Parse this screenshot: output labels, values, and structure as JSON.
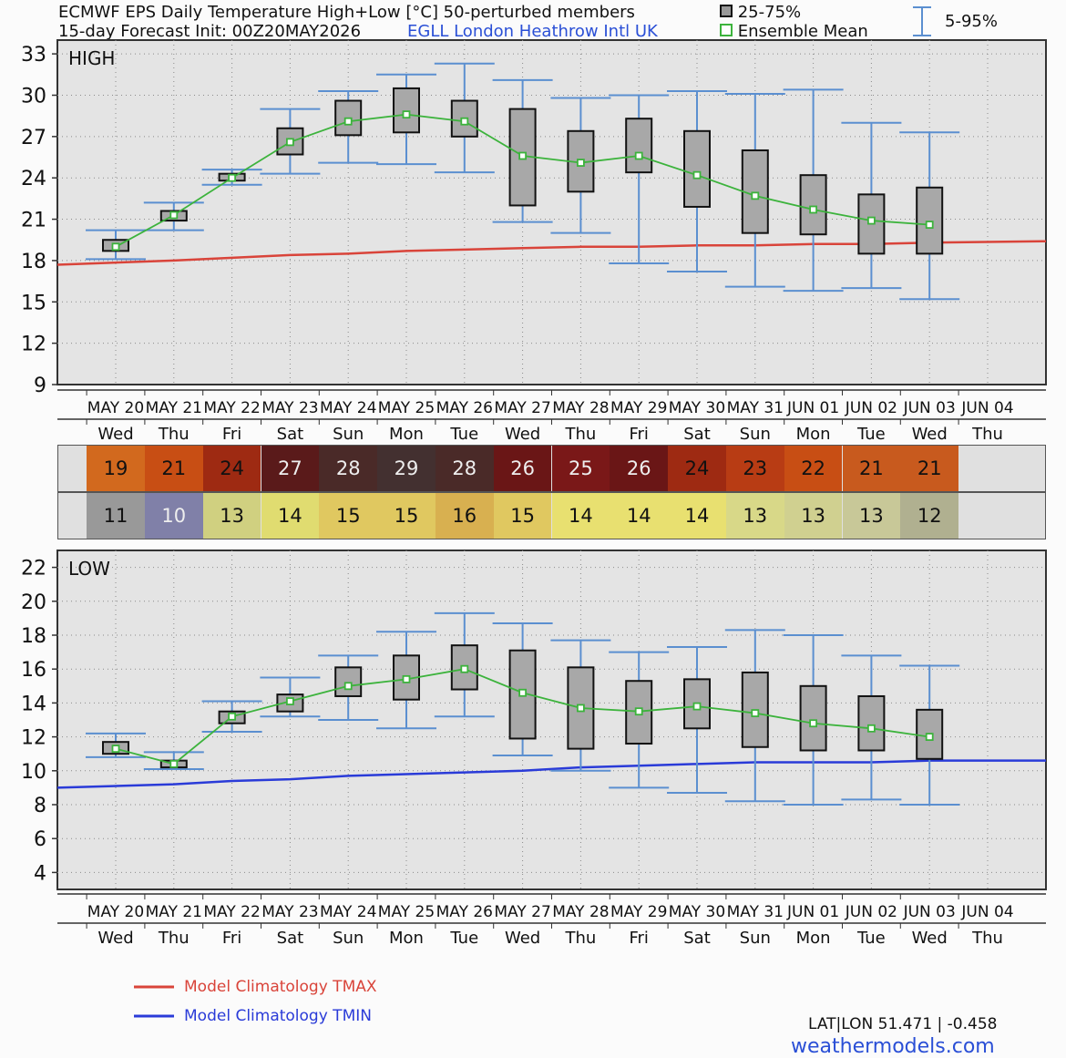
{
  "header": {
    "title": "ECMWF EPS Daily Temperature High+Low [°C]  50-perturbed members",
    "subtitle": "15-day Forecast Init: 00Z20MAY2026",
    "station": "EGLL  London Heathrow Intl UK",
    "legend_box": "25-75%",
    "legend_mean": "Ensemble Mean",
    "legend_whisker": "5-95%"
  },
  "dates": [
    "MAY 20",
    "MAY 21",
    "MAY 22",
    "MAY 23",
    "MAY 24",
    "MAY 25",
    "MAY 26",
    "MAY 27",
    "MAY 28",
    "MAY 29",
    "MAY 30",
    "MAY 31",
    "JUN 01",
    "JUN 02",
    "JUN 03",
    "JUN 04"
  ],
  "weekdays": [
    "Wed",
    "Thu",
    "Fri",
    "Sat",
    "Sun",
    "Mon",
    "Tue",
    "Wed",
    "Thu",
    "Fri",
    "Sat",
    "Sun",
    "Mon",
    "Tue",
    "Wed",
    "Thu"
  ],
  "high_table": [
    {
      "value": "19",
      "color": "#d2691e",
      "text": "#111"
    },
    {
      "value": "21",
      "color": "#c84e14",
      "text": "#111"
    },
    {
      "value": "24",
      "color": "#9e2a12",
      "text": "#111"
    },
    {
      "value": "27",
      "color": "#5a1a1a",
      "text": "#eee"
    },
    {
      "value": "28",
      "color": "#4a2a28",
      "text": "#eee"
    },
    {
      "value": "29",
      "color": "#433030",
      "text": "#eee"
    },
    {
      "value": "28",
      "color": "#4a2a28",
      "text": "#eee"
    },
    {
      "value": "26",
      "color": "#6a1616",
      "text": "#eee"
    },
    {
      "value": "25",
      "color": "#7a1818",
      "text": "#eee"
    },
    {
      "value": "26",
      "color": "#6a1616",
      "text": "#eee"
    },
    {
      "value": "24",
      "color": "#9e2a12",
      "text": "#111"
    },
    {
      "value": "23",
      "color": "#b83c14",
      "text": "#111"
    },
    {
      "value": "22",
      "color": "#c84e14",
      "text": "#111"
    },
    {
      "value": "21",
      "color": "#c85a1e",
      "text": "#111"
    },
    {
      "value": "21",
      "color": "#c85a1e",
      "text": "#111"
    }
  ],
  "low_table": [
    {
      "value": "11",
      "color": "#999999",
      "text": "#111"
    },
    {
      "value": "10",
      "color": "#8080a8",
      "text": "#eee"
    },
    {
      "value": "13",
      "color": "#d0d080",
      "text": "#111"
    },
    {
      "value": "14",
      "color": "#e0dc70",
      "text": "#111"
    },
    {
      "value": "15",
      "color": "#e0c860",
      "text": "#111"
    },
    {
      "value": "15",
      "color": "#e0c860",
      "text": "#111"
    },
    {
      "value": "16",
      "color": "#d8b050",
      "text": "#111"
    },
    {
      "value": "15",
      "color": "#e0c860",
      "text": "#111"
    },
    {
      "value": "14",
      "color": "#e8e070",
      "text": "#111"
    },
    {
      "value": "14",
      "color": "#e8e070",
      "text": "#111"
    },
    {
      "value": "14",
      "color": "#e8e070",
      "text": "#111"
    },
    {
      "value": "13",
      "color": "#d8d888",
      "text": "#111"
    },
    {
      "value": "13",
      "color": "#d0d090",
      "text": "#111"
    },
    {
      "value": "13",
      "color": "#c8c898",
      "text": "#111"
    },
    {
      "value": "12",
      "color": "#b0b090",
      "text": "#111"
    }
  ],
  "chart_data": [
    {
      "type": "boxplot",
      "label": "HIGH",
      "ylim": [
        9,
        34
      ],
      "yticks": [
        9,
        12,
        15,
        18,
        21,
        24,
        27,
        30,
        33
      ],
      "grid": true,
      "p05": [
        18.1,
        20.2,
        23.5,
        24.3,
        25.1,
        25.0,
        24.4,
        20.8,
        20.0,
        17.8,
        17.2,
        16.1,
        15.8,
        16.0,
        15.2
      ],
      "p25": [
        18.7,
        20.9,
        23.8,
        25.7,
        27.1,
        27.3,
        27.0,
        22.0,
        23.0,
        24.4,
        21.9,
        20.0,
        19.9,
        18.5,
        18.5
      ],
      "p75": [
        19.5,
        21.6,
        24.3,
        27.6,
        29.6,
        30.5,
        29.6,
        29.0,
        27.4,
        28.3,
        27.4,
        26.0,
        24.2,
        22.8,
        23.3
      ],
      "p95": [
        20.2,
        22.2,
        24.6,
        29.0,
        30.3,
        31.5,
        32.3,
        31.1,
        29.8,
        30.0,
        30.3,
        30.1,
        30.4,
        28.0,
        27.3
      ],
      "mean": [
        19.0,
        21.3,
        24.0,
        26.6,
        28.1,
        28.6,
        28.1,
        25.6,
        25.1,
        25.6,
        24.2,
        22.7,
        21.7,
        20.9,
        20.6
      ],
      "climatology_name": "Model Climatology TMAX",
      "climatology": [
        17.7,
        18.0,
        18.2,
        18.4,
        18.5,
        18.7,
        18.8,
        18.9,
        19.0,
        19.0,
        19.1,
        19.1,
        19.2,
        19.2,
        19.3,
        19.4
      ],
      "climatology_color": "#d9443a"
    },
    {
      "type": "boxplot",
      "label": "LOW",
      "ylim": [
        3,
        23
      ],
      "yticks": [
        4,
        6,
        8,
        10,
        12,
        14,
        16,
        18,
        20,
        22
      ],
      "grid": true,
      "p05": [
        10.8,
        10.1,
        12.3,
        13.2,
        13.0,
        12.5,
        13.2,
        10.9,
        10.0,
        9.0,
        8.7,
        8.2,
        8.0,
        8.3,
        8.0
      ],
      "p25": [
        11.0,
        10.2,
        12.8,
        13.5,
        14.4,
        14.2,
        14.8,
        11.9,
        11.3,
        11.6,
        12.5,
        11.4,
        11.2,
        11.2,
        10.7
      ],
      "p75": [
        11.7,
        10.6,
        13.5,
        14.5,
        16.1,
        16.8,
        17.4,
        17.1,
        16.1,
        15.3,
        15.4,
        15.8,
        15.0,
        14.4,
        13.6
      ],
      "p95": [
        12.2,
        11.1,
        14.1,
        15.5,
        16.8,
        18.2,
        19.3,
        18.7,
        17.7,
        17.0,
        17.3,
        18.3,
        18.0,
        16.8,
        16.2
      ],
      "mean": [
        11.3,
        10.4,
        13.2,
        14.1,
        15.0,
        15.4,
        16.0,
        14.6,
        13.7,
        13.5,
        13.8,
        13.4,
        12.8,
        12.5,
        12.0
      ],
      "climatology_name": "Model Climatology TMIN",
      "climatology": [
        9.0,
        9.2,
        9.4,
        9.5,
        9.7,
        9.8,
        9.9,
        10.0,
        10.2,
        10.3,
        10.4,
        10.5,
        10.5,
        10.5,
        10.6,
        10.6
      ],
      "climatology_color": "#2a3bd8"
    }
  ],
  "footer": {
    "tmax_legend": "Model Climatology TMAX",
    "tmin_legend": "Model Climatology TMIN",
    "latlon": "LAT|LON  51.471 | -0.458",
    "site": "weathermodels.com"
  },
  "colors": {
    "box_fill": "#a8a8a8",
    "whisker": "#5b8fd0",
    "mean_line": "#3cb33c"
  }
}
